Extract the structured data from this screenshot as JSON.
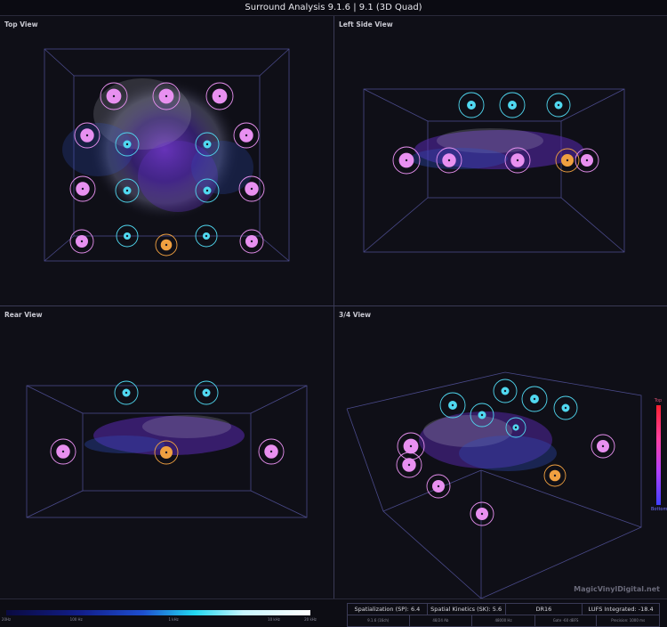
{
  "window": {
    "title": "Surround Analysis 9.1.6 | 9.1 (3D Quad)"
  },
  "views": {
    "top": {
      "label": "Top View"
    },
    "left": {
      "label": "Left Side View"
    },
    "rear": {
      "label": "Rear View"
    },
    "quarter": {
      "label": "3/4 View"
    }
  },
  "brand": "MagicVinylDigital.net",
  "height_scale": {
    "top_label": "Top",
    "bottom_label": "Bottom",
    "colors": [
      "#ff2030",
      "#ff40a0",
      "#b040ff",
      "#4040ff"
    ]
  },
  "frequency_bar": {
    "ticks": [
      "20Hz",
      "100 Hz",
      "1 kHz",
      "10 kHz",
      "20 kHz"
    ],
    "tick_positions": [
      0,
      0.23,
      0.55,
      0.88,
      1.0
    ]
  },
  "stats": {
    "row1": [
      "Spatialization (SP): 6.4",
      "Spatial Kinetics (SK): 5.6",
      "DR16",
      "LUFS Integrated: -18.4"
    ],
    "row2": [
      "9.1.6 (16ch)",
      "48/24 Ab",
      "48000 Hz",
      "Gate -60 dBFS",
      "Precision: 1000 ms"
    ]
  },
  "colors": {
    "bed_speaker": "#e890f0",
    "height_speaker": "#50d8f0",
    "lfe_speaker": "#f0a040",
    "box_line": "#5050a0"
  }
}
